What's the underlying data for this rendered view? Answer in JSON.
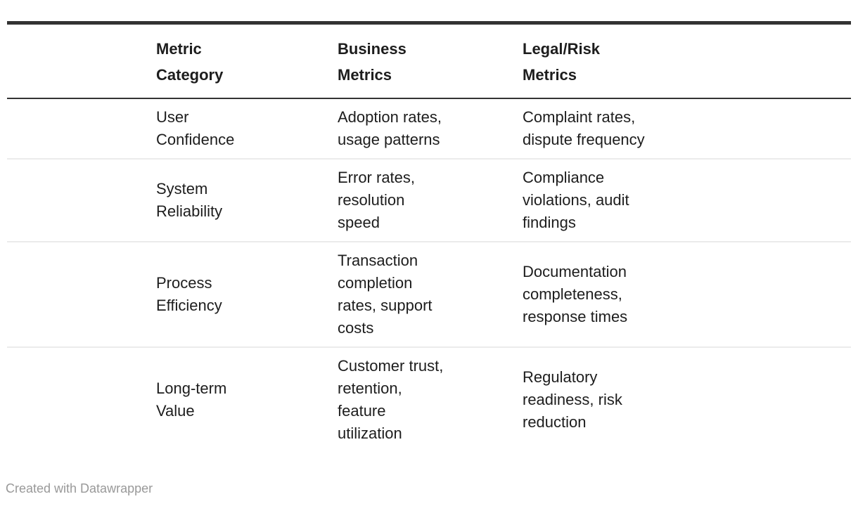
{
  "chart_data": {
    "type": "table",
    "columns": [
      "Metric Category",
      "Business Metrics",
      "Legal/Risk Metrics"
    ],
    "rows": [
      [
        "User Confidence",
        "Adoption rates, usage patterns",
        "Complaint rates, dispute frequency"
      ],
      [
        "System Reliability",
        "Error rates, resolution speed",
        "Compliance violations, audit findings"
      ],
      [
        "Process Efficiency",
        "Transaction completion rates, support costs",
        "Documentation completeness, response times"
      ],
      [
        "Long-term Value",
        "Customer trust, retention, feature utilization",
        "Regulatory readiness, risk reduction"
      ]
    ],
    "layout_hints": {
      "first_column_empty": true,
      "header_style": "bold",
      "top_rule": "thick dark",
      "row_dividers": "light gray",
      "grid": "horizontal rules only"
    }
  },
  "footer": {
    "credit": "Created with Datawrapper"
  },
  "colors": {
    "rule_dark": "#333333",
    "row_divider": "#ebebeb",
    "text": "#1d1d1d",
    "credit": "#999999",
    "background": "#ffffff"
  }
}
